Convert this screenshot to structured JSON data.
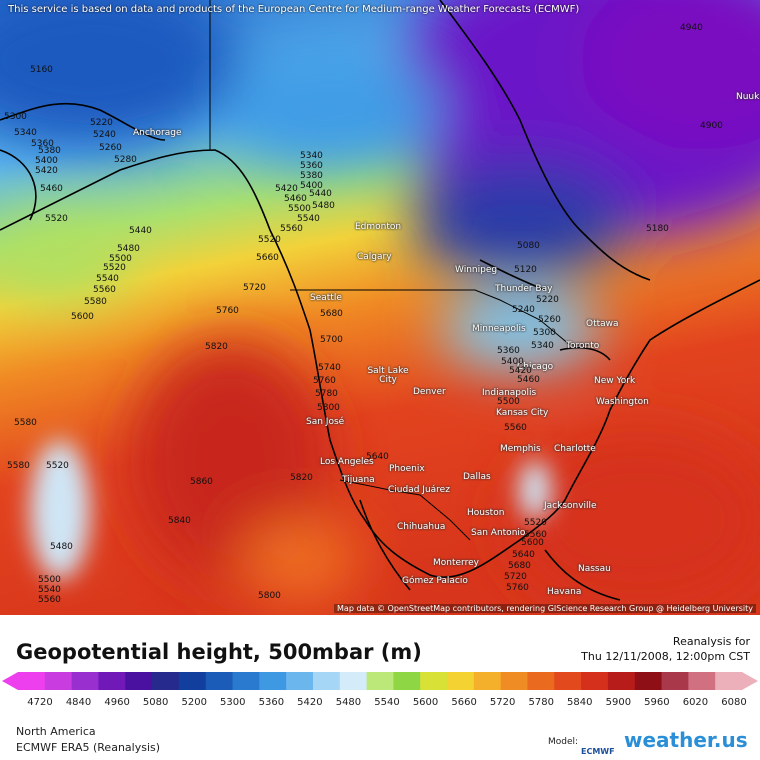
{
  "header": {
    "notice": "This service is based on data and products of the European Centre for Medium-range Weather Forecasts (ECMWF)"
  },
  "map": {
    "cities": [
      "Anchorage",
      "Edmonton",
      "Calgary",
      "Winnipeg",
      "Thunder Bay",
      "Seattle",
      "Ottawa",
      "Minneapolis",
      "Toronto",
      "Chicago",
      "Salt Lake City",
      "Denver",
      "New York",
      "Indianapolis",
      "Kansas City",
      "Washington",
      "San José",
      "Memphis",
      "Charlotte",
      "Los Angeles",
      "Phoenix",
      "Dallas",
      "Tijuana",
      "Ciudad Juárez",
      "Jacksonville",
      "Houston",
      "Chihuahua",
      "San Antonio",
      "Monterrey",
      "Nassau",
      "Gómez Palacio",
      "Havana",
      "Nuuk"
    ],
    "contour_labels": [
      "5160",
      "5300",
      "5340",
      "5360",
      "5380",
      "5400",
      "5420",
      "5460",
      "5520",
      "5220",
      "5240",
      "5260",
      "5280",
      "5340",
      "5360",
      "5380",
      "5400",
      "5420",
      "5440",
      "5460",
      "5500",
      "5480",
      "5540",
      "5560",
      "5520",
      "5660",
      "5440",
      "5480",
      "5500",
      "5520",
      "5540",
      "5560",
      "5580",
      "5600",
      "5720",
      "5760",
      "5820",
      "5680",
      "5700",
      "5740",
      "5760",
      "5780",
      "5800",
      "5640",
      "5820",
      "5860",
      "5840",
      "5800",
      "5580",
      "5580",
      "5520",
      "5480",
      "5500",
      "5540",
      "5560",
      "4900",
      "4940",
      "5180",
      "5080",
      "5120",
      "5220",
      "5240",
      "5260",
      "5300",
      "5360",
      "5340",
      "5400",
      "5420",
      "5460",
      "5500",
      "5560",
      "5520",
      "5560",
      "5600",
      "5640",
      "5680",
      "5720",
      "5760"
    ],
    "attribution": "Map data © OpenStreetMap contributors, rendering GIScience Research Group @ Heidelberg University"
  },
  "footer": {
    "title": "Geopotential height, 500mbar (m)",
    "run_label": "Reanalysis for",
    "valid_time": "Thu 12/11/2008, 12:00pm CST",
    "colorbar_ticks": [
      "4720",
      "4840",
      "4960",
      "5080",
      "5200",
      "5300",
      "5360",
      "5420",
      "5480",
      "5540",
      "5600",
      "5660",
      "5720",
      "5780",
      "5840",
      "5900",
      "5960",
      "6020",
      "6080"
    ],
    "region": "North America",
    "model_name": "ECMWF ERA5 (Reanalysis)",
    "model_label": "Model:",
    "ecmwf_logo": "ECMWF",
    "brand": "weather.us"
  }
}
